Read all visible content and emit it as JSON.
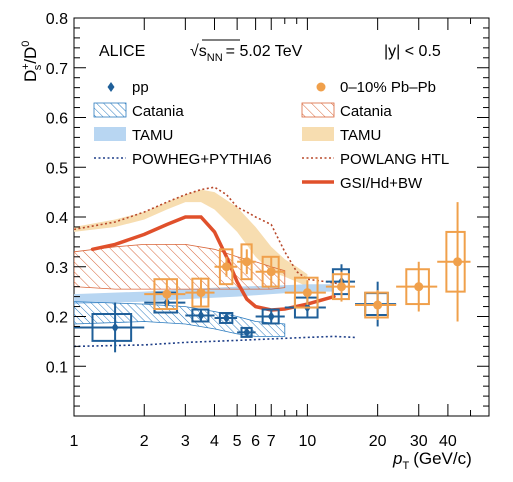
{
  "chart_data": {
    "type": "scatter",
    "title": "",
    "annotations": {
      "experiment": "ALICE",
      "energy_label": "√s",
      "energy_subscript": "NN",
      "energy_value": "= 5.02 TeV",
      "rapidity": "|y| < 0.5"
    },
    "xlabel": "p",
    "xlabel_subscript": "T",
    "xlabel_unit": "(GeV/c)",
    "ylabel": "D",
    "ylabel_sup1": "+",
    "ylabel_sub1": "s",
    "ylabel_slash": "/",
    "ylabel_sup2": "0",
    "xlim": [
      1,
      60
    ],
    "xscale": "log",
    "ylim": [
      0,
      0.8
    ],
    "grid": false,
    "x_ticks": [
      {
        "value": 1,
        "label": "1"
      },
      {
        "value": 2,
        "label": "2"
      },
      {
        "value": 3,
        "label": "3"
      },
      {
        "value": 4,
        "label": "4"
      },
      {
        "value": 5,
        "label": "5"
      },
      {
        "value": 6,
        "label": "6"
      },
      {
        "value": 7,
        "label": "7"
      },
      {
        "value": 10,
        "label": "10"
      },
      {
        "value": 20,
        "label": "20"
      },
      {
        "value": 30,
        "label": "30"
      },
      {
        "value": 40,
        "label": "40"
      }
    ],
    "y_ticks": [
      {
        "value": 0.1,
        "label": "0.1"
      },
      {
        "value": 0.2,
        "label": "0.2"
      },
      {
        "value": 0.3,
        "label": "0.3"
      },
      {
        "value": 0.4,
        "label": "0.4"
      },
      {
        "value": 0.5,
        "label": "0.5"
      },
      {
        "value": 0.6,
        "label": "0.6"
      },
      {
        "value": 0.7,
        "label": "0.7"
      },
      {
        "value": 0.8,
        "label": "0.8"
      }
    ],
    "legend": {
      "placement": "top",
      "left": [
        {
          "key": "pp",
          "label": "pp"
        },
        {
          "key": "catania_pp",
          "label": "Catania"
        },
        {
          "key": "tamu_pp",
          "label": "TAMU"
        },
        {
          "key": "powheg",
          "label": "POWHEG+PYTHIA6"
        }
      ],
      "right": [
        {
          "key": "pbpb",
          "label": "0–10% Pb–Pb"
        },
        {
          "key": "catania_pbpb",
          "label": "Catania"
        },
        {
          "key": "tamu_pbpb",
          "label": "TAMU"
        },
        {
          "key": "powlang",
          "label": "POWLANG HTL"
        },
        {
          "key": "gsi",
          "label": "GSI/Hd+BW"
        }
      ]
    },
    "colors": {
      "pp": "#1f5f99",
      "pbpb": "#f0a04b",
      "catania_pp": "#2b7bbf",
      "tamu_pp": "#b8d6f2",
      "powheg": "#1f3f88",
      "catania_pbpb": "#d9663a",
      "tamu_pbpb": "#f7ddb0",
      "powlang": "#b8482a",
      "gsi": "#e0502b"
    },
    "series": [
      {
        "key": "pp",
        "name": "pp",
        "points": [
          {
            "x": 1.5,
            "y": 0.178,
            "xlo": 1.0,
            "xhi": 2.0,
            "stat": 0.05,
            "syst": 0.027
          },
          {
            "x": 2.5,
            "y": 0.228,
            "xlo": 2.0,
            "xhi": 3.0,
            "stat": 0.015,
            "syst": 0.02
          },
          {
            "x": 3.5,
            "y": 0.202,
            "xlo": 3.0,
            "xhi": 4.0,
            "stat": 0.01,
            "syst": 0.012
          },
          {
            "x": 4.5,
            "y": 0.197,
            "xlo": 4.0,
            "xhi": 5.0,
            "stat": 0.008,
            "syst": 0.01
          },
          {
            "x": 5.5,
            "y": 0.168,
            "xlo": 5.0,
            "xhi": 6.0,
            "stat": 0.008,
            "syst": 0.009
          },
          {
            "x": 7.0,
            "y": 0.2,
            "xlo": 6.0,
            "xhi": 8.0,
            "stat": 0.012,
            "syst": 0.014
          },
          {
            "x": 10.0,
            "y": 0.218,
            "xlo": 8.0,
            "xhi": 12.0,
            "stat": 0.022,
            "syst": 0.02
          },
          {
            "x": 14.0,
            "y": 0.27,
            "xlo": 12.0,
            "xhi": 16.0,
            "stat": 0.035,
            "syst": 0.025
          },
          {
            "x": 20.0,
            "y": 0.225,
            "xlo": 16.0,
            "xhi": 24.0,
            "stat": 0.045,
            "syst": 0.022
          }
        ]
      },
      {
        "key": "pbpb",
        "name": "0–10% Pb–Pb",
        "points": [
          {
            "x": 2.5,
            "y": 0.245,
            "xlo": 2.0,
            "xhi": 3.0,
            "stat": 0.03,
            "syst": 0.03
          },
          {
            "x": 3.5,
            "y": 0.248,
            "xlo": 3.0,
            "xhi": 4.0,
            "stat": 0.03,
            "syst": 0.028
          },
          {
            "x": 4.5,
            "y": 0.3,
            "xlo": 4.0,
            "xhi": 5.0,
            "stat": 0.02,
            "syst": 0.035
          },
          {
            "x": 5.5,
            "y": 0.31,
            "xlo": 5.0,
            "xhi": 6.0,
            "stat": 0.025,
            "syst": 0.035
          },
          {
            "x": 7.0,
            "y": 0.29,
            "xlo": 6.0,
            "xhi": 8.0,
            "stat": 0.03,
            "syst": 0.03
          },
          {
            "x": 10.0,
            "y": 0.248,
            "xlo": 8.0,
            "xhi": 12.0,
            "stat": 0.025,
            "syst": 0.03
          },
          {
            "x": 14.0,
            "y": 0.26,
            "xlo": 12.0,
            "xhi": 16.0,
            "stat": 0.03,
            "syst": 0.025
          },
          {
            "x": 20.0,
            "y": 0.223,
            "xlo": 16.0,
            "xhi": 24.0,
            "stat": 0.03,
            "syst": 0.025
          },
          {
            "x": 30.0,
            "y": 0.26,
            "xlo": 24.0,
            "xhi": 36.0,
            "stat": 0.05,
            "syst": 0.035
          },
          {
            "x": 44.0,
            "y": 0.31,
            "xlo": 36.0,
            "xhi": 50.0,
            "stat": 0.12,
            "syst": 0.06
          }
        ]
      }
    ],
    "models": [
      {
        "key": "tamu_pbpb",
        "name": "TAMU",
        "kind": "band",
        "points": [
          [
            1.0,
            0.37,
            0.38
          ],
          [
            1.5,
            0.38,
            0.395
          ],
          [
            2.0,
            0.395,
            0.41
          ],
          [
            2.5,
            0.415,
            0.43
          ],
          [
            3.0,
            0.43,
            0.445
          ],
          [
            3.5,
            0.43,
            0.455
          ],
          [
            4.0,
            0.415,
            0.45
          ],
          [
            5.0,
            0.37,
            0.42
          ],
          [
            6.0,
            0.32,
            0.38
          ],
          [
            7.0,
            0.29,
            0.34
          ],
          [
            8.0,
            0.28,
            0.315
          ],
          [
            9.0,
            0.27,
            0.3
          ],
          [
            10.0,
            0.26,
            0.285
          ]
        ]
      },
      {
        "key": "tamu_pp",
        "name": "TAMU",
        "kind": "band",
        "points": [
          [
            1.0,
            0.225,
            0.245
          ],
          [
            2.0,
            0.23,
            0.25
          ],
          [
            3.0,
            0.235,
            0.255
          ],
          [
            5.0,
            0.24,
            0.26
          ],
          [
            7.0,
            0.245,
            0.262
          ],
          [
            10.0,
            0.25,
            0.265
          ],
          [
            13.0,
            0.25,
            0.265
          ]
        ]
      },
      {
        "key": "catania_pbpb",
        "name": "Catania",
        "kind": "band",
        "points": [
          [
            1.0,
            0.26,
            0.33
          ],
          [
            1.5,
            0.255,
            0.34
          ],
          [
            2.0,
            0.255,
            0.345
          ],
          [
            3.0,
            0.255,
            0.345
          ],
          [
            4.0,
            0.255,
            0.335
          ],
          [
            5.0,
            0.255,
            0.32
          ],
          [
            6.0,
            0.255,
            0.31
          ],
          [
            7.0,
            0.255,
            0.3
          ],
          [
            8.0,
            0.258,
            0.292
          ]
        ]
      },
      {
        "key": "catania_pp",
        "name": "Catania",
        "kind": "band",
        "points": [
          [
            1.0,
            0.185,
            0.23
          ],
          [
            2.0,
            0.19,
            0.225
          ],
          [
            3.0,
            0.185,
            0.22
          ],
          [
            4.0,
            0.175,
            0.21
          ],
          [
            5.0,
            0.165,
            0.2
          ],
          [
            6.0,
            0.16,
            0.19
          ],
          [
            8.0,
            0.16,
            0.185
          ]
        ]
      },
      {
        "key": "powlang",
        "name": "POWLANG HTL",
        "kind": "dotted",
        "points": [
          [
            1.0,
            0.375
          ],
          [
            1.5,
            0.39
          ],
          [
            2.0,
            0.41
          ],
          [
            2.5,
            0.43
          ],
          [
            3.0,
            0.445
          ],
          [
            3.5,
            0.455
          ],
          [
            4.0,
            0.46
          ],
          [
            4.5,
            0.445
          ],
          [
            5.0,
            0.42
          ],
          [
            5.5,
            0.41
          ],
          [
            6.0,
            0.4
          ],
          [
            7.0,
            0.385
          ],
          [
            8.0,
            0.33
          ],
          [
            9.0,
            0.29
          ],
          [
            10.0,
            0.275
          ],
          [
            12.0,
            0.27
          ],
          [
            14.0,
            0.265
          ]
        ]
      },
      {
        "key": "powheg",
        "name": "POWHEG+PYTHIA6",
        "kind": "dotted",
        "points": [
          [
            1.0,
            0.14
          ],
          [
            2.0,
            0.143
          ],
          [
            3.0,
            0.148
          ],
          [
            5.0,
            0.152
          ],
          [
            7.0,
            0.155
          ],
          [
            10.0,
            0.158
          ],
          [
            13.0,
            0.16
          ],
          [
            16.0,
            0.158
          ]
        ]
      },
      {
        "key": "gsi",
        "name": "GSI/Hd+BW",
        "kind": "solid",
        "points": [
          [
            1.2,
            0.335
          ],
          [
            1.5,
            0.345
          ],
          [
            2.0,
            0.365
          ],
          [
            2.5,
            0.385
          ],
          [
            3.0,
            0.4
          ],
          [
            3.5,
            0.4
          ],
          [
            4.0,
            0.37
          ],
          [
            4.5,
            0.32
          ],
          [
            5.0,
            0.27
          ],
          [
            5.5,
            0.235
          ],
          [
            6.0,
            0.22
          ],
          [
            7.0,
            0.213
          ],
          [
            8.0,
            0.215
          ],
          [
            10.0,
            0.225
          ],
          [
            13.0,
            0.24
          ]
        ]
      }
    ]
  }
}
